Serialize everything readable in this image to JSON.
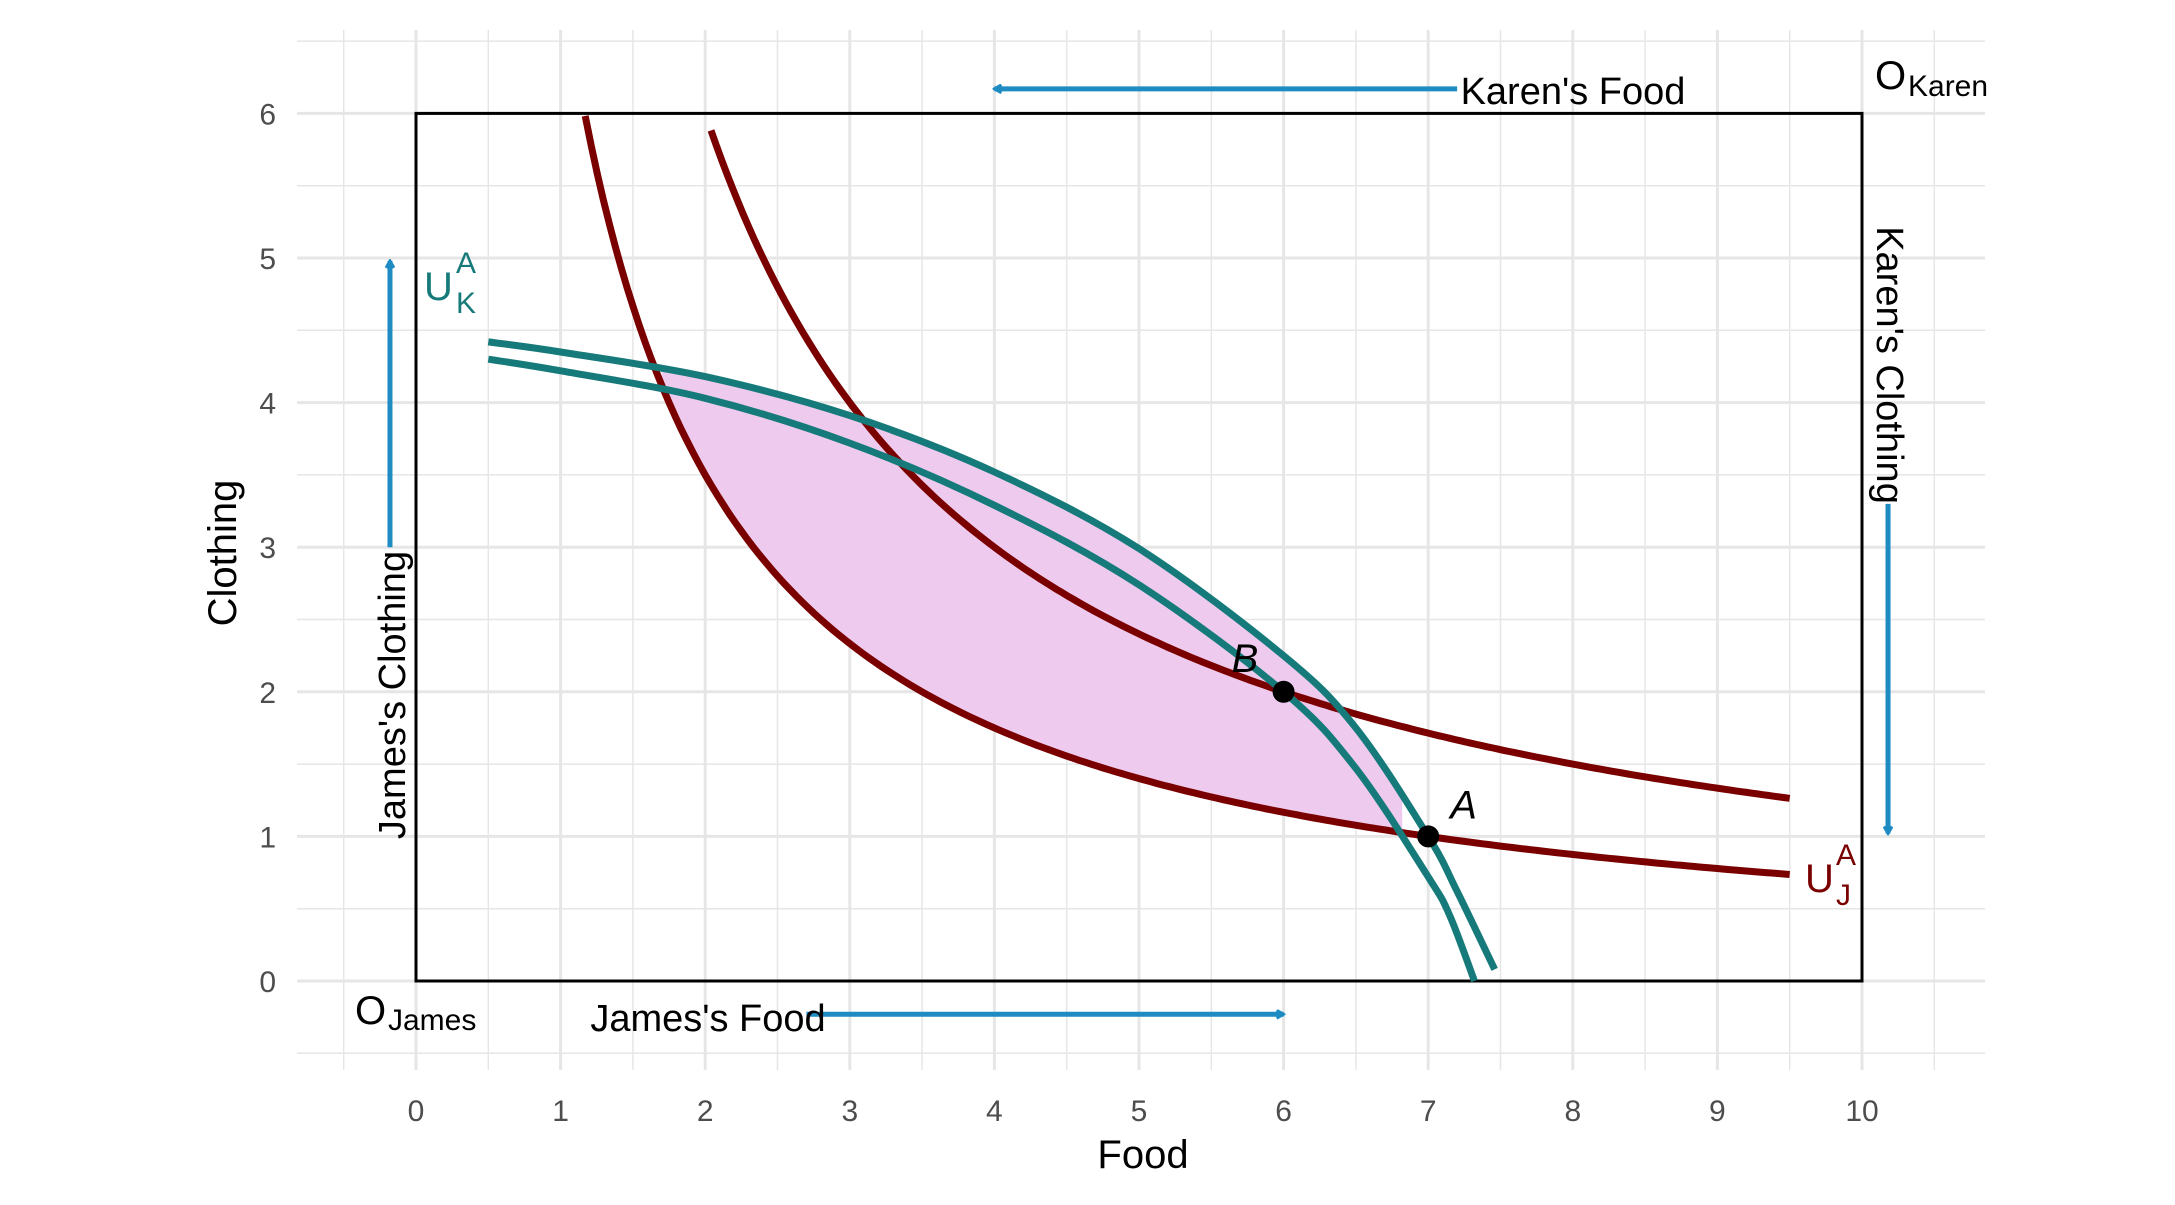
{
  "chart_data": {
    "type": "line",
    "title": "",
    "xlabel": "Food",
    "ylabel": "Clothing",
    "xlim": [
      -0.8,
      10.8
    ],
    "ylim": [
      -0.6,
      6.5
    ],
    "x_ticks": [
      0,
      1,
      2,
      3,
      4,
      5,
      6,
      7,
      8,
      9,
      10
    ],
    "y_ticks": [
      0,
      1,
      2,
      3,
      4,
      5,
      6
    ],
    "grid": true,
    "box": {
      "x": [
        0,
        10
      ],
      "y": [
        0,
        6
      ]
    },
    "series": [
      {
        "key": "uj_a",
        "shape": "x*y=7",
        "x_range": [
          1.17,
          9.5
        ]
      },
      {
        "key": "uj_b",
        "shape": "x*y=12",
        "x_range": [
          2.04,
          9.5
        ]
      },
      {
        "key": "uk_a",
        "shape": "teal indifference curve through A",
        "points": [
          [
            0.5,
            4.42
          ],
          [
            1,
            4.35
          ],
          [
            2,
            4.18
          ],
          [
            3,
            3.91
          ],
          [
            4,
            3.52
          ],
          [
            5,
            2.99
          ],
          [
            6,
            2.25
          ],
          [
            6.5,
            1.75
          ],
          [
            7,
            1.0
          ],
          [
            7.2,
            0.62
          ],
          [
            7.46,
            0.08
          ]
        ]
      },
      {
        "key": "uk_b",
        "shape": "teal indifference curve through B",
        "points": [
          [
            0.5,
            4.3
          ],
          [
            1,
            4.22
          ],
          [
            2,
            4.03
          ],
          [
            3,
            3.72
          ],
          [
            4,
            3.29
          ],
          [
            5,
            2.74
          ],
          [
            6,
            2.0
          ],
          [
            6.5,
            1.47
          ],
          [
            7,
            0.72
          ],
          [
            7.15,
            0.45
          ],
          [
            7.32,
            0.0
          ]
        ]
      }
    ],
    "points": [
      {
        "label": "A",
        "x": 7,
        "y": 1
      },
      {
        "label": "B",
        "x": 6,
        "y": 2
      }
    ],
    "curve_labels": {
      "uk": {
        "base": "U",
        "sup": "A",
        "sub": "K"
      },
      "uj": {
        "base": "U",
        "sup": "A",
        "sub": "J"
      }
    },
    "annotations": {
      "origin_james": {
        "base": "O",
        "sub": "James"
      },
      "origin_karen": {
        "base": "O",
        "sub": "Karen"
      },
      "james_food": "James's Food",
      "james_clothing": "James's Clothing",
      "karen_food": "Karen's Food",
      "karen_clothing": "Karen's Clothing"
    },
    "colors": {
      "uj": "#7a0000",
      "uk": "#177a7a",
      "region": "#eecbee",
      "arrow": "#1e8bc3",
      "grid": "#e6e6e6",
      "box": "#000000",
      "text": "#000000",
      "tick": "#4d4d4d"
    }
  }
}
